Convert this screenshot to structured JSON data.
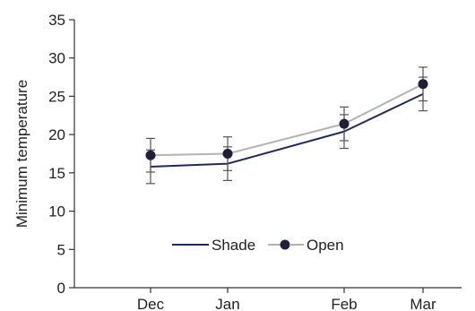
{
  "chart_data": {
    "type": "line",
    "categories": [
      "Dec",
      "Jan",
      "Feb",
      "Mar"
    ],
    "xlabel": "",
    "ylabel": "Minimum temperature",
    "ylim": [
      0,
      35
    ],
    "yticks": [
      0,
      5,
      10,
      15,
      20,
      25,
      30,
      35
    ],
    "grid": false,
    "legend_position": "bottom-center",
    "series": [
      {
        "name": "Shade",
        "values": [
          15.8,
          16.2,
          20.4,
          25.3
        ],
        "errors": [
          2.2,
          2.2,
          2.2,
          2.2
        ],
        "color": "#1f2a5c",
        "marker": "none"
      },
      {
        "name": "Open",
        "values": [
          17.3,
          17.5,
          21.4,
          26.6
        ],
        "errors": [
          2.2,
          2.2,
          2.2,
          2.2
        ],
        "color": "#b3b3b3",
        "marker": "circle",
        "marker_color": "#1f1f3a"
      }
    ]
  }
}
